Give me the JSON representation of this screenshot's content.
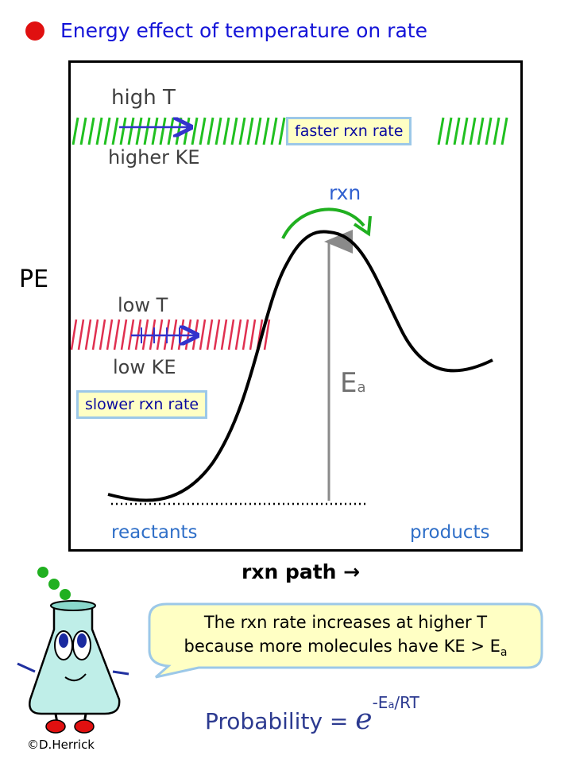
{
  "title": "Energy effect of temperature on rate",
  "axes": {
    "y_label": "PE",
    "x_label": "rxn path →"
  },
  "high_temp": {
    "line1": "high T",
    "line2": "higher KE",
    "rate_label": "faster rxn rate"
  },
  "low_temp": {
    "line1": "low T",
    "line2": "low KE",
    "rate_label": "slower rxn rate"
  },
  "curve": {
    "reaction_label": "rxn",
    "activation_energy_main": "E",
    "activation_energy_sub": "a",
    "reactants_label": "reactants",
    "products_label": "products"
  },
  "callout": {
    "line1": "The rxn rate increases at higher T",
    "line2_prefix": "because more molecules have KE > E",
    "line2_sub": "a"
  },
  "formula": {
    "lhs": "Probability = ",
    "base": "e",
    "exp_prefix": "-E",
    "exp_sub": "a",
    "exp_suffix": "/RT"
  },
  "credit": "©D.Herrick",
  "colors": {
    "title": "#1414d8",
    "bullet": "#e01010",
    "high_band": "#20c020",
    "low_band": "#e03050",
    "arrow": "#3333cc",
    "rxn_arrow": "#20b020",
    "label_blue": "#2f6fc8"
  },
  "icons": {
    "bullet": "red-dot-icon",
    "mascot": "flask-mascot-icon"
  }
}
